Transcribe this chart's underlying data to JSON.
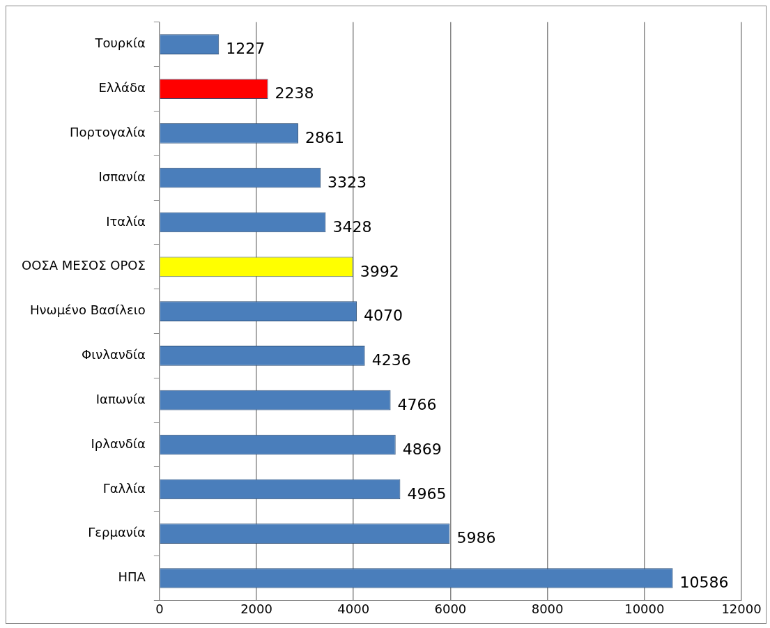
{
  "chart_data": {
    "type": "bar",
    "orientation": "horizontal",
    "categories": [
      "Τουρκία",
      "Ελλάδα",
      "Πορτογαλία",
      "Ισπανία",
      "Ιταλία",
      "ΟΟΣΑ ΜΕΣΟΣ ΟΡΟΣ",
      "Ηνωμένο Βασίλειο",
      "Φινλανδία",
      "Ιαπωνία",
      "Ιρλανδία",
      "Γαλλία",
      "Γερμανία",
      "ΗΠΑ"
    ],
    "values": [
      1227,
      2238,
      2861,
      3323,
      3428,
      3992,
      4070,
      4236,
      4766,
      4869,
      4965,
      5986,
      10586
    ],
    "colors": [
      "#4a7ebb",
      "#ff0000",
      "#4a7ebb",
      "#4a7ebb",
      "#4a7ebb",
      "#ffff00",
      "#4a7ebb",
      "#4a7ebb",
      "#4a7ebb",
      "#4a7ebb",
      "#4a7ebb",
      "#4a7ebb",
      "#4a7ebb"
    ],
    "xlim": [
      0,
      12000
    ],
    "xticks": [
      0,
      2000,
      4000,
      6000,
      8000,
      10000,
      12000
    ],
    "grid": "x",
    "data_labels": true,
    "legend": false
  }
}
